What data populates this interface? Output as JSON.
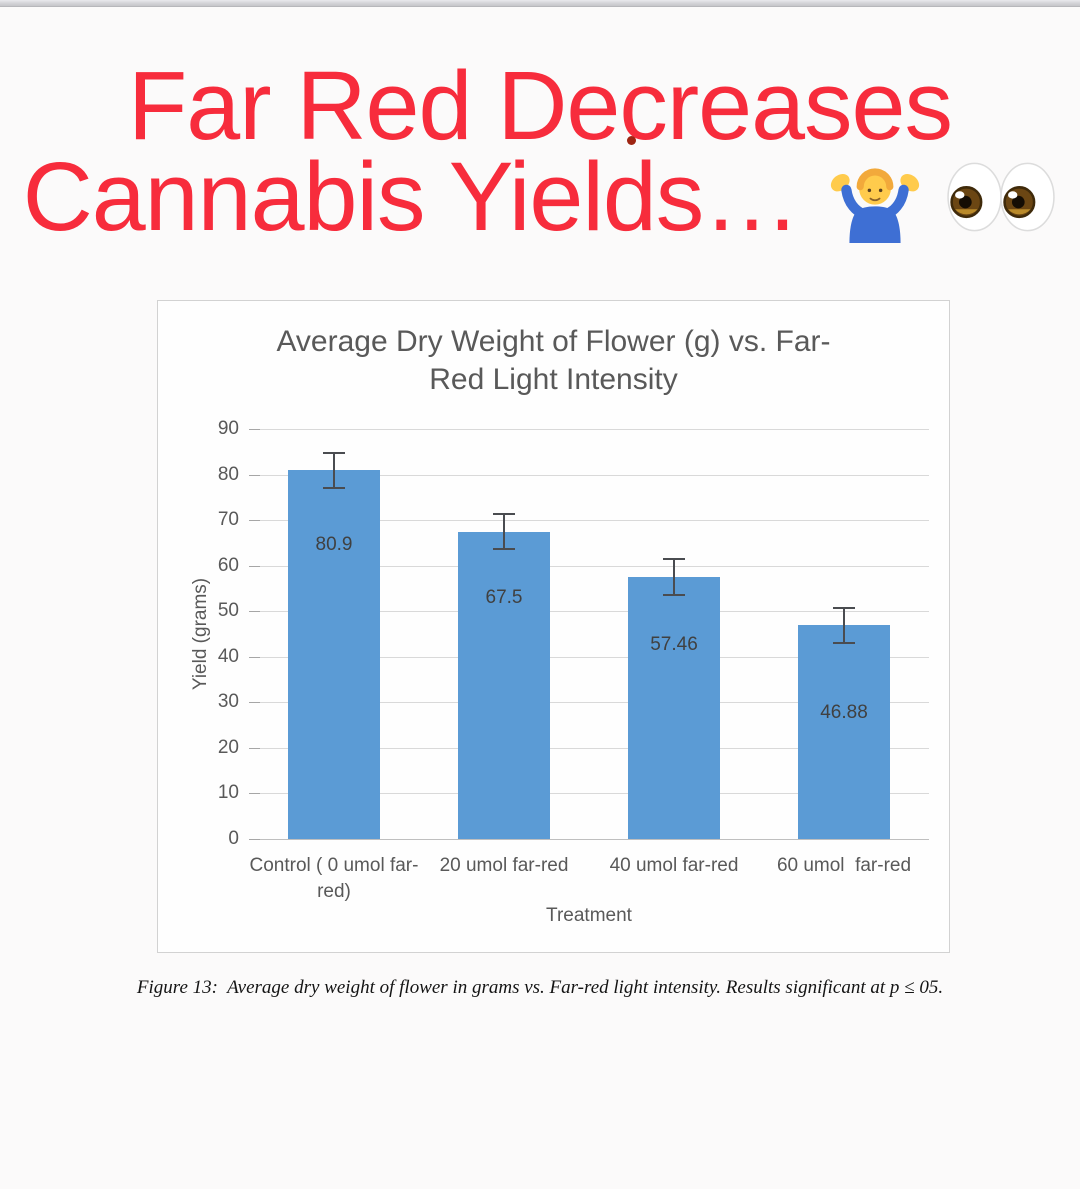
{
  "page": {
    "title_line1": "Far Red Decreases",
    "title_line2": "Cannabis Yields…",
    "title_color": "#f72c3c",
    "emojis": [
      "man-shrugging",
      "eyes"
    ]
  },
  "chart_data": {
    "type": "bar",
    "title": "Average Dry Weight of Flower (g) vs. Far-Red Light Intensity",
    "title_lines": [
      "Average Dry Weight of Flower (g) vs. Far-",
      "Red Light Intensity"
    ],
    "categories": [
      "Control ( 0 umol far-red)",
      "20 umol far-red",
      "40 umol far-red",
      "60 umol  far-red"
    ],
    "values": [
      80.9,
      67.5,
      57.46,
      46.88
    ],
    "errors": [
      3.8,
      3.9,
      3.9,
      3.9
    ],
    "xlabel": "Treatment",
    "ylabel": "Yield (grams)",
    "ylim": [
      0,
      90
    ],
    "yticks": [
      0,
      10,
      20,
      30,
      40,
      50,
      60,
      70,
      80,
      90
    ],
    "grid": true,
    "legend": "none",
    "bar_color": "#5b9bd5",
    "gridline_color": "#d9d9d9",
    "text_color": "#595959"
  },
  "caption": {
    "text": "Figure 13:  Average dry weight of flower in grams vs. Far-red light intensity. Results significant at p ≤ 05."
  }
}
